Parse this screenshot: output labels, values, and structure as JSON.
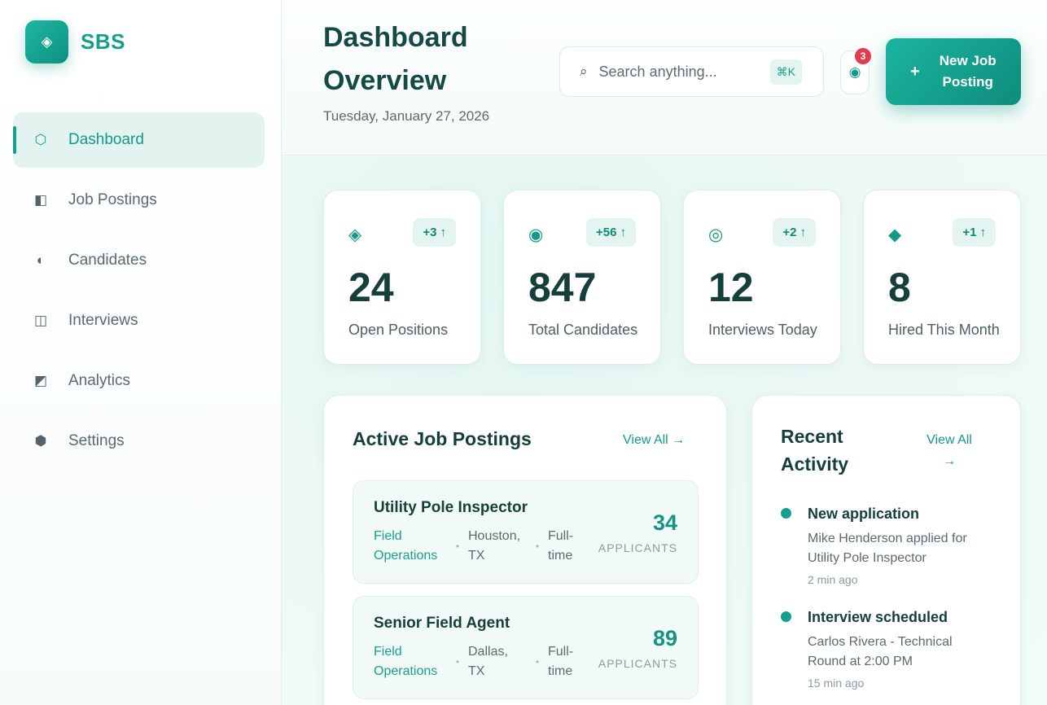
{
  "brand": {
    "name": "SBS",
    "logo_icon": "◈"
  },
  "sidebar": {
    "items": [
      {
        "label": "Dashboard",
        "icon": "⬡",
        "icon_name": "dashboard-icon",
        "active": true
      },
      {
        "label": "Job Postings",
        "icon": "◧",
        "icon_name": "job-postings-icon"
      },
      {
        "label": "Candidates",
        "icon": "◐",
        "icon_name": "candidates-icon"
      },
      {
        "label": "Interviews",
        "icon": "◫",
        "icon_name": "interviews-icon"
      },
      {
        "label": "Analytics",
        "icon": "◩",
        "icon_name": "analytics-icon"
      },
      {
        "label": "Settings",
        "icon": "⬢",
        "icon_name": "settings-icon"
      }
    ]
  },
  "header": {
    "title": "Dashboard Overview",
    "date": "Tuesday, January 27, 2026",
    "search": {
      "icon": "⌕",
      "placeholder": "Search anything...",
      "shortcut": "⌘K"
    },
    "notifications": {
      "icon": "◉",
      "count": "3"
    },
    "new_job_button": {
      "plus": "+",
      "label": "New Job Posting"
    }
  },
  "stats": [
    {
      "icon": "◈",
      "delta": "+3",
      "arrow": "↑",
      "value": "24",
      "label": "Open Positions"
    },
    {
      "icon": "◉",
      "delta": "+56",
      "arrow": "↑",
      "value": "847",
      "label": "Total Candidates"
    },
    {
      "icon": "◎",
      "delta": "+2",
      "arrow": "↑",
      "value": "12",
      "label": "Interviews Today"
    },
    {
      "icon": "◆",
      "delta": "+1",
      "arrow": "↑",
      "value": "8",
      "label": "Hired This Month"
    }
  ],
  "jobs_panel": {
    "title": "Active Job Postings",
    "view_all": "View All →",
    "jobs": [
      {
        "title": "Utility Pole Inspector",
        "department": "Field Operations",
        "location": "Houston, TX",
        "type": "Full-time",
        "applicants": "34",
        "applicants_label": "APPLICANTS"
      },
      {
        "title": "Senior Field Agent",
        "department": "Field Operations",
        "location": "Dallas, TX",
        "type": "Full-time",
        "applicants": "89",
        "applicants_label": "APPLICANTS"
      }
    ],
    "separator": "•"
  },
  "activity_panel": {
    "title": "Recent Activity",
    "view_all": "View All →",
    "items": [
      {
        "title": "New application",
        "description": "Mike Henderson applied for Utility Pole Inspector",
        "time": "2 min ago"
      },
      {
        "title": "Interview scheduled",
        "description": "Carlos Rivera - Technical Round at 2:00 PM",
        "time": "15 min ago"
      }
    ]
  },
  "colors": {
    "accent": "#129a86",
    "accent_dark": "#0e8c7b",
    "badge": "#e23a4e",
    "title": "#163f3b"
  }
}
